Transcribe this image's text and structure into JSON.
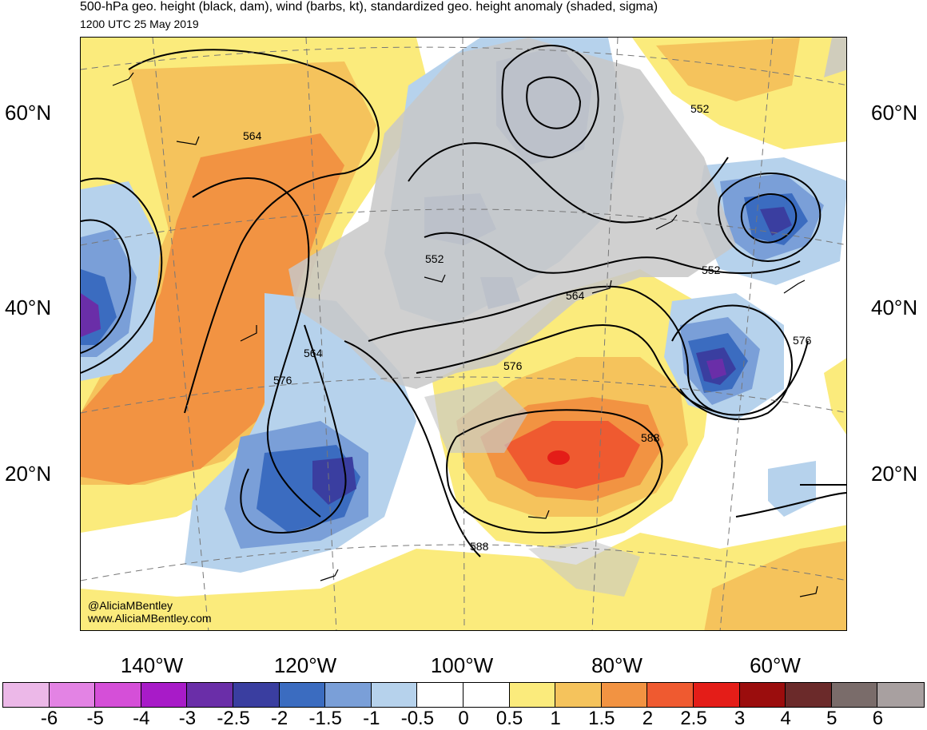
{
  "header": {
    "title": "500-hPa geo. height (black, dam), wind (barbs, kt), standardized geo. height anomaly (shaded, sigma)",
    "subtitle": "1200 UTC 25 May 2019"
  },
  "map": {
    "lat_labels": [
      "60°N",
      "40°N",
      "20°N"
    ],
    "lon_labels": [
      "140°W",
      "120°W",
      "100°W",
      "80°W",
      "60°W"
    ],
    "contour_labels": [
      "552",
      "564",
      "576",
      "588"
    ],
    "credits": [
      "@AliciaMBentley",
      "www.AliciaMBentley.com"
    ]
  },
  "colorbar": {
    "ticks": [
      "-6",
      "-5",
      "-4",
      "-3",
      "-2.5",
      "-2",
      "-1.5",
      "-1",
      "-0.5",
      "0",
      "0.5",
      "1",
      "1.5",
      "2",
      "2.5",
      "3",
      "4",
      "5",
      "6"
    ],
    "colors": [
      "#ecb8e8",
      "#e383e4",
      "#d54fd8",
      "#a81bc8",
      "#6a2ea8",
      "#3a3ea0",
      "#3b6cc0",
      "#7a9fd8",
      "#b6d2ec",
      "#ffffff",
      "#ffffff",
      "#fbeb7c",
      "#f5c35c",
      "#f29342",
      "#ef5a30",
      "#e41d18",
      "#9b0d0d",
      "#6b2a2a",
      "#7a6c6a",
      "#a8a0a0"
    ]
  }
}
